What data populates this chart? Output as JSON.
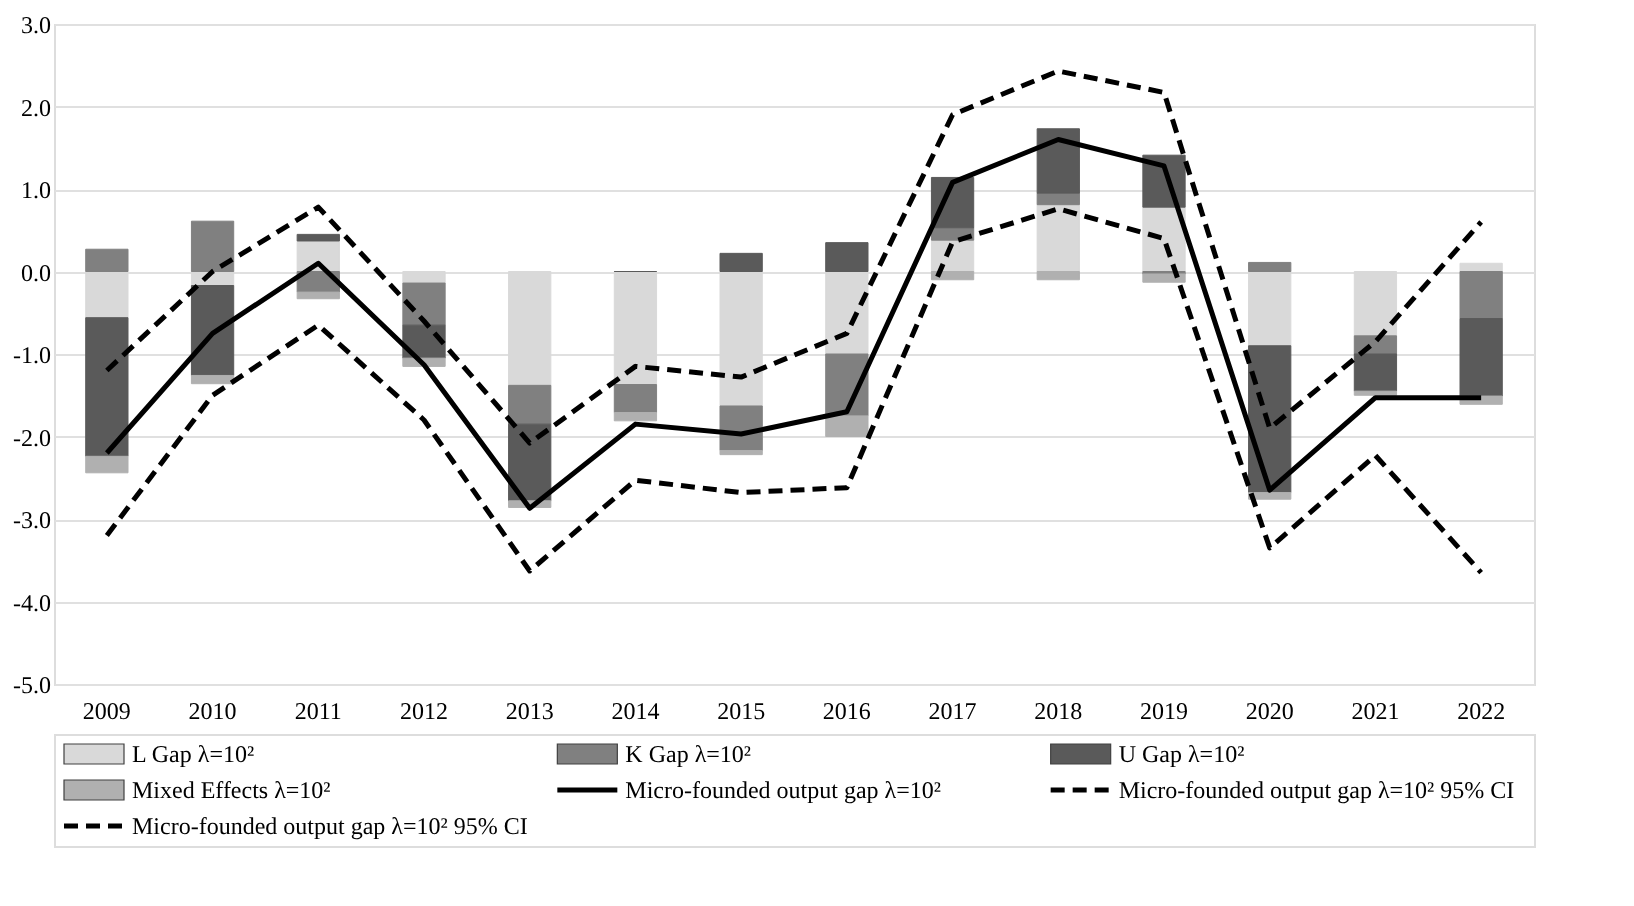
{
  "chart_data": {
    "type": "bar",
    "stacked": true,
    "categories": [
      "2009",
      "2010",
      "2011",
      "2012",
      "2013",
      "2014",
      "2015",
      "2016",
      "2017",
      "2018",
      "2019",
      "2020",
      "2021",
      "2022"
    ],
    "series": [
      {
        "name": "L Gap λ=10²",
        "type": "bar",
        "color": "#d9d9d9",
        "values": [
          -0.56,
          -0.17,
          0.37,
          -0.14,
          -1.38,
          -1.37,
          -1.63,
          -1.0,
          0.38,
          0.81,
          0.78,
          -0.9,
          -0.78,
          0.1
        ]
      },
      {
        "name": "K Gap λ=10²",
        "type": "bar",
        "color": "#808080",
        "values": [
          0.27,
          0.61,
          -0.25,
          -0.51,
          -0.47,
          -0.34,
          -0.54,
          -0.75,
          0.15,
          0.14,
          -0.03,
          0.11,
          -0.22,
          -0.57
        ]
      },
      {
        "name": "U Gap λ=10²",
        "type": "bar",
        "color": "#5a5a5a",
        "values": [
          -1.68,
          -1.09,
          0.08,
          -0.4,
          -0.93,
          0.0,
          0.22,
          0.35,
          0.61,
          0.78,
          0.63,
          -1.78,
          -0.45,
          -0.94
        ]
      },
      {
        "name": "Mixed Effects  λ=10²",
        "type": "bar",
        "color": "#b0b0b0",
        "values": [
          -0.2,
          -0.1,
          -0.08,
          -0.1,
          -0.08,
          -0.1,
          -0.05,
          -0.25,
          -0.1,
          -0.1,
          -0.1,
          -0.08,
          -0.05,
          -0.1
        ]
      },
      {
        "name": "Micro-founded output gap λ=10²",
        "type": "line",
        "line_style": "solid",
        "color": "#000000",
        "values": [
          -2.2,
          -0.75,
          0.1,
          -1.13,
          -2.87,
          -1.85,
          -1.97,
          -1.7,
          1.08,
          1.6,
          1.28,
          -2.65,
          -1.53,
          -1.53
        ]
      },
      {
        "name": "Micro-founded output gap λ=10² 95% CI",
        "type": "line",
        "line_style": "dashed",
        "color": "#000000",
        "values": [
          -1.2,
          0.0,
          0.78,
          -0.6,
          -2.08,
          -1.15,
          -1.28,
          -0.75,
          1.9,
          2.43,
          2.17,
          -1.9,
          -0.85,
          0.6
        ]
      },
      {
        "name": "Micro-founded output gap λ=10² 95% CI",
        "type": "line",
        "line_style": "dashed",
        "color": "#000000",
        "values": [
          -3.2,
          -1.5,
          -0.65,
          -1.8,
          -3.63,
          -2.53,
          -2.68,
          -2.62,
          0.36,
          0.76,
          0.4,
          -3.35,
          -2.23,
          -3.65
        ]
      }
    ],
    "ylim": [
      -5,
      3
    ],
    "yticks": [
      {
        "value": -5,
        "label": "-5.0"
      },
      {
        "value": -4,
        "label": "-4.0"
      },
      {
        "value": -3,
        "label": "-3.0"
      },
      {
        "value": -2,
        "label": "-2.0"
      },
      {
        "value": -1,
        "label": "-1.0"
      },
      {
        "value": 0,
        "label": "0.0"
      },
      {
        "value": 1,
        "label": "1.0"
      },
      {
        "value": 2,
        "label": "2.0"
      },
      {
        "value": 3,
        "label": "3.0"
      }
    ],
    "grid": "y",
    "legend": "bottom"
  }
}
